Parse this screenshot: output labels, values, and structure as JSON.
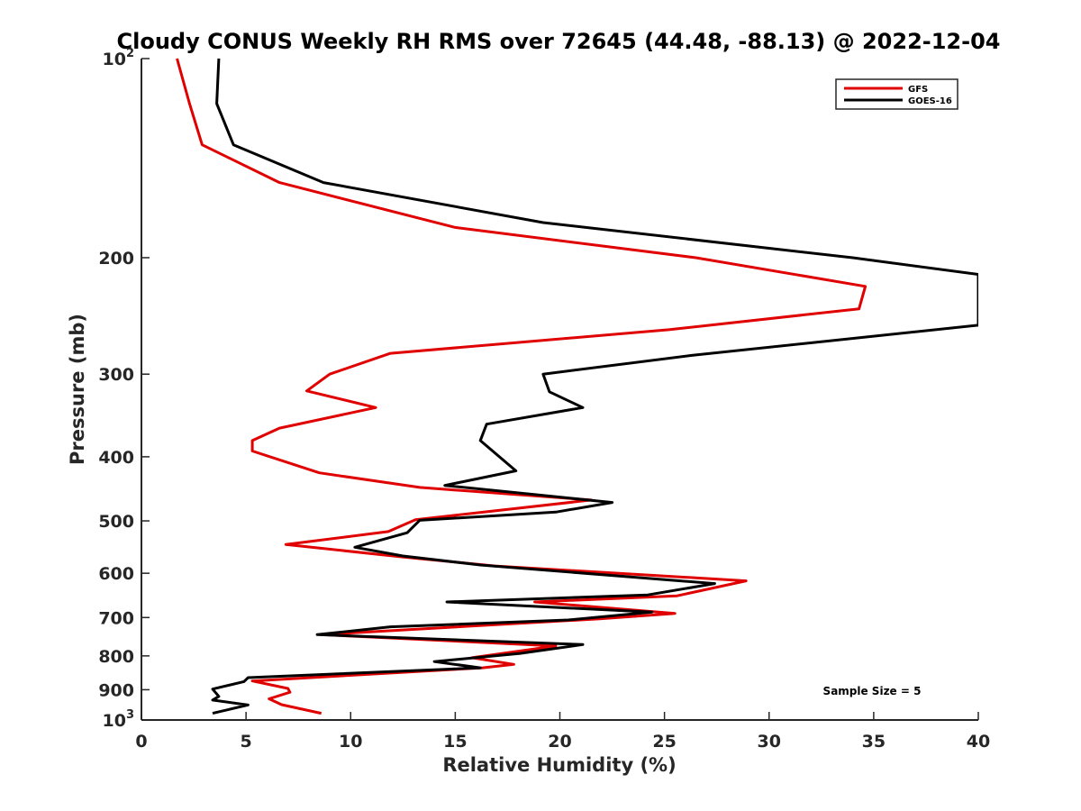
{
  "chart_data": {
    "type": "line",
    "title": "Cloudy CONUS Weekly RH RMS over 72645 (44.48, -88.13) @ 2022-12-04",
    "xlabel": "Relative Humidity (%)",
    "ylabel": "Pressure (mb)",
    "xlim": [
      0,
      40
    ],
    "ylim": [
      100,
      1000
    ],
    "y_scale": "log",
    "y_reversed": true,
    "grid": false,
    "legend_position": "top-right",
    "x_ticks": [
      {
        "value": 0,
        "label": "0"
      },
      {
        "value": 5,
        "label": "5"
      },
      {
        "value": 10,
        "label": "10"
      },
      {
        "value": 15,
        "label": "15"
      },
      {
        "value": 20,
        "label": "20"
      },
      {
        "value": 25,
        "label": "25"
      },
      {
        "value": 30,
        "label": "30"
      },
      {
        "value": 35,
        "label": "35"
      },
      {
        "value": 40,
        "label": "40"
      }
    ],
    "y_ticks": [
      {
        "value": 100,
        "base": "10",
        "exp": "2"
      },
      {
        "value": 200,
        "label": "200"
      },
      {
        "value": 300,
        "label": "300"
      },
      {
        "value": 400,
        "label": "400"
      },
      {
        "value": 500,
        "label": "500"
      },
      {
        "value": 600,
        "label": "600"
      },
      {
        "value": 700,
        "label": "700"
      },
      {
        "value": 800,
        "label": "800"
      },
      {
        "value": 900,
        "label": "900"
      },
      {
        "value": 1000,
        "base": "10",
        "exp": "3"
      }
    ],
    "annotation": "Sample Size = 5",
    "series": [
      {
        "name": "GFS",
        "color": "#e00000",
        "points": [
          [
            1.7,
            100
          ],
          [
            2.3,
            117
          ],
          [
            2.9,
            135
          ],
          [
            6.6,
            154
          ],
          [
            15.0,
            180
          ],
          [
            26.5,
            200
          ],
          [
            34.6,
            221
          ],
          [
            34.3,
            239
          ],
          [
            25.2,
            257
          ],
          [
            11.9,
            279
          ],
          [
            9.0,
            300
          ],
          [
            7.9,
            318
          ],
          [
            11.2,
            337
          ],
          [
            6.6,
            362
          ],
          [
            5.3,
            378
          ],
          [
            5.3,
            392
          ],
          [
            8.5,
            423
          ],
          [
            13.3,
            445
          ],
          [
            21.5,
            465
          ],
          [
            13.1,
            498
          ],
          [
            11.8,
            519
          ],
          [
            6.9,
            543
          ],
          [
            12.5,
            567
          ],
          [
            16.9,
            585
          ],
          [
            28.9,
            616
          ],
          [
            25.6,
            649
          ],
          [
            18.8,
            663
          ],
          [
            25.5,
            690
          ],
          [
            21.9,
            703
          ],
          [
            8.6,
            743
          ],
          [
            19.8,
            773
          ],
          [
            15.8,
            805
          ],
          [
            17.8,
            824
          ],
          [
            16.3,
            834
          ],
          [
            5.3,
            873
          ],
          [
            7.0,
            896
          ],
          [
            7.1,
            908
          ],
          [
            6.1,
            929
          ],
          [
            6.7,
            948
          ],
          [
            8.6,
            977
          ]
        ]
      },
      {
        "name": "GOES-16",
        "color": "#000000",
        "points": [
          [
            3.7,
            100
          ],
          [
            3.6,
            117
          ],
          [
            4.4,
            135
          ],
          [
            8.7,
            154
          ],
          [
            19.2,
            177
          ],
          [
            34.0,
            200
          ],
          [
            40.0,
            212
          ],
          [
            40.0,
            253
          ],
          [
            26.3,
            281
          ],
          [
            19.2,
            300
          ],
          [
            19.5,
            319
          ],
          [
            21.1,
            337
          ],
          [
            16.5,
            357
          ],
          [
            16.2,
            378
          ],
          [
            17.9,
            420
          ],
          [
            14.5,
            442
          ],
          [
            22.5,
            469
          ],
          [
            19.8,
            485
          ],
          [
            13.3,
            499
          ],
          [
            12.7,
            521
          ],
          [
            10.2,
            548
          ],
          [
            12.5,
            565
          ],
          [
            16.2,
            583
          ],
          [
            27.4,
            622
          ],
          [
            24.2,
            647
          ],
          [
            14.6,
            663
          ],
          [
            24.4,
            687
          ],
          [
            20.4,
            706
          ],
          [
            11.9,
            723
          ],
          [
            8.4,
            743
          ],
          [
            21.1,
            769
          ],
          [
            18.1,
            793
          ],
          [
            14.0,
            816
          ],
          [
            16.2,
            834
          ],
          [
            5.1,
            863
          ],
          [
            4.9,
            875
          ],
          [
            3.4,
            898
          ],
          [
            3.7,
            921
          ],
          [
            3.4,
            933
          ],
          [
            5.1,
            949
          ],
          [
            3.4,
            977
          ]
        ]
      }
    ]
  }
}
